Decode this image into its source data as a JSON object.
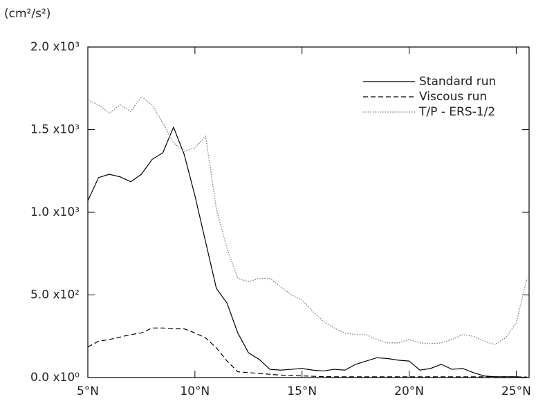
{
  "chart_data": {
    "type": "line",
    "y_label": "(cm²/s²)",
    "x": [
      5,
      5.5,
      6,
      6.5,
      7,
      7.5,
      8,
      8.5,
      9,
      9.5,
      10,
      10.5,
      11,
      11.5,
      12,
      12.5,
      13,
      13.5,
      14,
      14.5,
      15,
      15.5,
      16,
      16.5,
      17,
      17.5,
      18,
      18.5,
      19,
      19.5,
      20,
      20.5,
      21,
      21.5,
      22,
      22.5,
      23,
      23.5,
      24,
      24.5,
      25,
      25.5
    ],
    "series": [
      {
        "name": "Standard run",
        "color": "#000000",
        "dash": "solid",
        "values": [
          1070,
          1210,
          1230,
          1215,
          1185,
          1230,
          1320,
          1360,
          1515,
          1350,
          1100,
          820,
          540,
          450,
          270,
          150,
          110,
          50,
          45,
          50,
          55,
          45,
          40,
          50,
          45,
          80,
          100,
          120,
          115,
          105,
          100,
          45,
          55,
          80,
          50,
          55,
          30,
          10,
          5,
          5,
          5,
          0
        ]
      },
      {
        "name": "Viscous run",
        "color": "#000000",
        "dash": "dashed",
        "values": [
          185,
          220,
          230,
          245,
          260,
          270,
          300,
          300,
          295,
          295,
          270,
          240,
          180,
          100,
          35,
          30,
          25,
          20,
          15,
          12,
          10,
          8,
          6,
          5,
          5,
          5,
          5,
          5,
          5,
          5,
          5,
          5,
          5,
          5,
          5,
          5,
          5,
          5,
          5,
          5,
          5,
          3
        ]
      },
      {
        "name": "T/P - ERS-1/2",
        "color": "#777777",
        "dash": "dotted",
        "values": [
          1680,
          1650,
          1600,
          1650,
          1610,
          1700,
          1650,
          1540,
          1420,
          1370,
          1390,
          1460,
          1020,
          780,
          600,
          580,
          600,
          600,
          550,
          500,
          470,
          400,
          340,
          300,
          270,
          260,
          260,
          230,
          210,
          210,
          230,
          210,
          205,
          210,
          230,
          260,
          250,
          220,
          200,
          240,
          330,
          600
        ]
      }
    ],
    "xlim": [
      5,
      25.6
    ],
    "xticks": [
      {
        "value": 5,
        "label": "5°N"
      },
      {
        "value": 10,
        "label": "10°N"
      },
      {
        "value": 15,
        "label": "15°N"
      },
      {
        "value": 20,
        "label": "20°N"
      },
      {
        "value": 25,
        "label": "25°N"
      }
    ],
    "ylim": [
      0,
      2000
    ],
    "yticks": [
      {
        "value": 0,
        "label": "0.0 x10⁰"
      },
      {
        "value": 500,
        "label": "5.0 x10²"
      },
      {
        "value": 1000,
        "label": "1.0 x10³"
      },
      {
        "value": 1500,
        "label": "1.5 x10³"
      },
      {
        "value": 2000,
        "label": "2.0 x10³"
      }
    ],
    "legend": "upper-right"
  }
}
